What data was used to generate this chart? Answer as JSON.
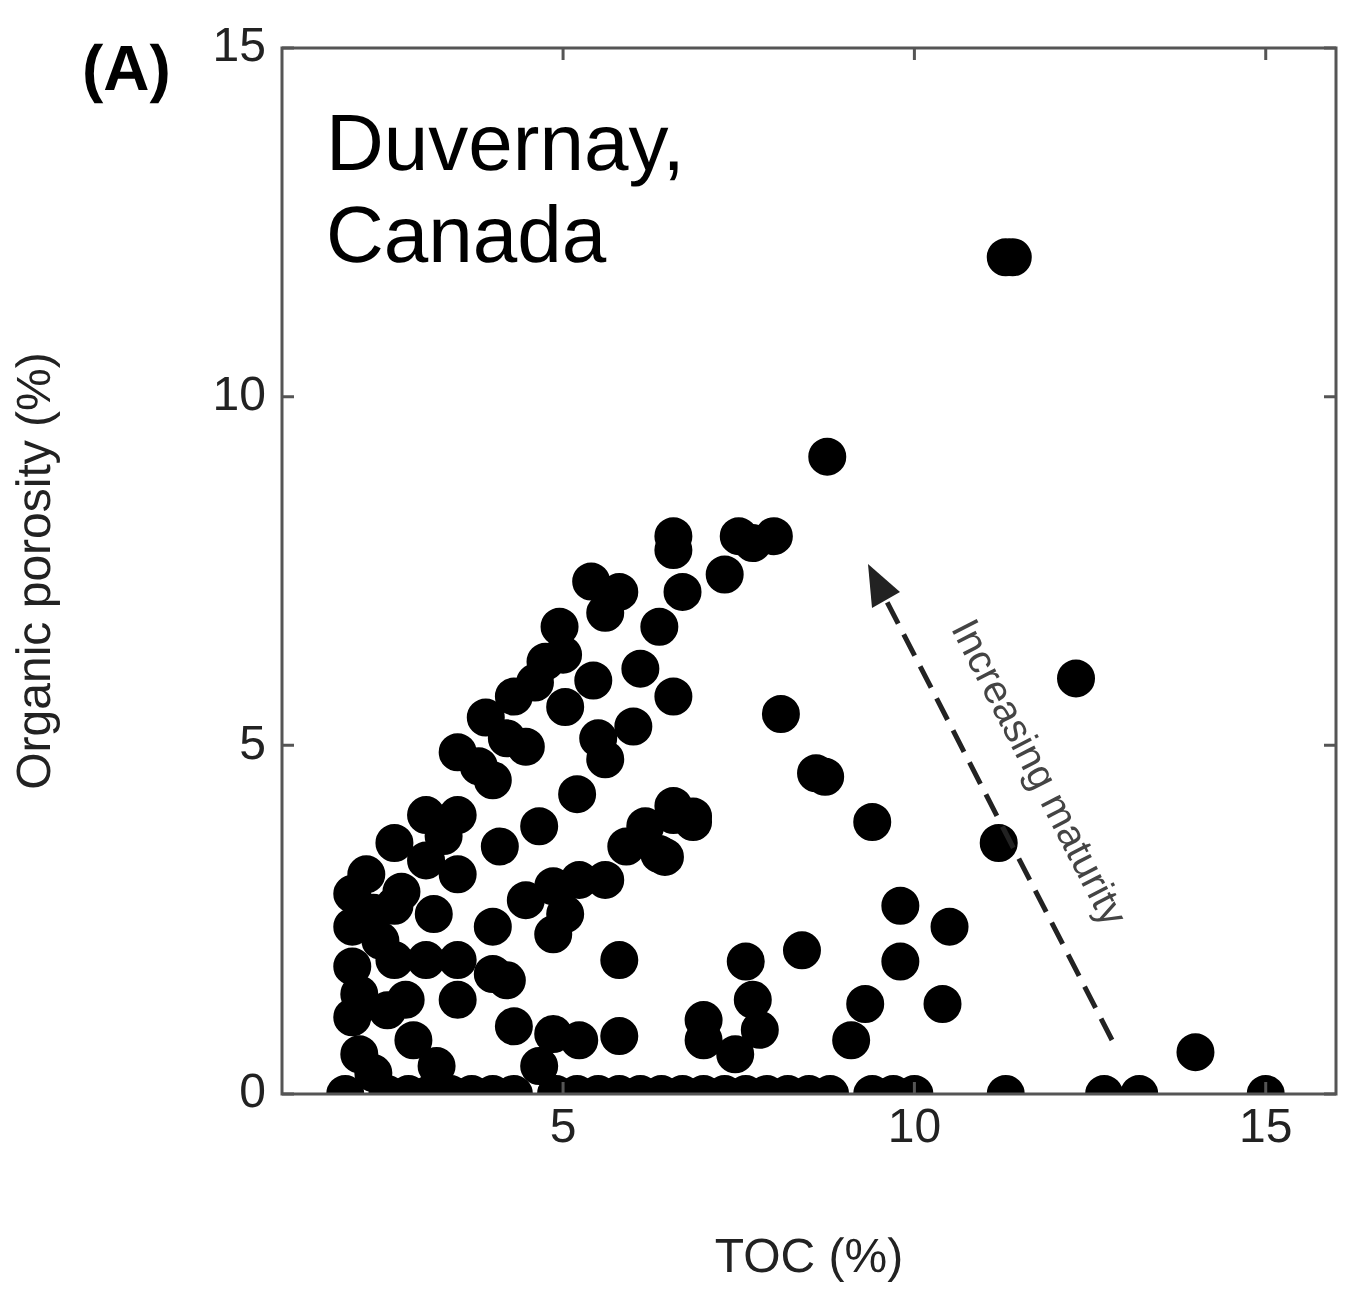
{
  "chart_data": {
    "type": "scatter",
    "xlabel": "TOC (%)",
    "ylabel": "Organic porosity (%)",
    "xlim": [
      1,
      16
    ],
    "ylim": [
      0,
      15
    ],
    "xticks": [
      5,
      10,
      15
    ],
    "yticks": [
      0,
      5,
      10,
      15
    ],
    "grid": false,
    "legend": false,
    "marker": "circle",
    "annotations": [
      "(A)",
      "Duvernay,\nCanada",
      "Increasing maturity"
    ],
    "series": [
      {
        "color": "#000000",
        "x": [
          11.3,
          11.4,
          8.76,
          12.3,
          8.1,
          8.73,
          8.6,
          9.4,
          11.2,
          9.8,
          10.5,
          8.4,
          7.6,
          9.8,
          10.4,
          9.3,
          9.1,
          7.0,
          7.0,
          7.7,
          7.8,
          7.45,
          14.0,
          6.57,
          6.57,
          6.7,
          7.5,
          8.0,
          7.7,
          7.3,
          6.57,
          6.85,
          6.45,
          5.4,
          5.8,
          4.95,
          4.75,
          4.3,
          3.9,
          3.5,
          3.05,
          2.6,
          2.2,
          2.0,
          6.37,
          6.57,
          6.0,
          5.6,
          5.2,
          4.66,
          4.1,
          3.5,
          3.16,
          4.47,
          5.03,
          5.43,
          4.0,
          3.5,
          3.05,
          2.6,
          2.4,
          2.0,
          2.6,
          2.1,
          3.05,
          2.76,
          2.1,
          2.87,
          3.2,
          4.47,
          4.86,
          5.23,
          5.6,
          5.9,
          6.17,
          6.57,
          6.85,
          6.37,
          4.86,
          4.0,
          3.5,
          4.0,
          3.5,
          4.2,
          5.8,
          5.03,
          4.3,
          4.86,
          5.23,
          5.8,
          4.66,
          2.0,
          2.0,
          2.3,
          2.5,
          2.7,
          2.3,
          3.3,
          3.8,
          4.2,
          4.6,
          5.0,
          5.6,
          6.1,
          5.5,
          1.9,
          2.5,
          2.8,
          3.1,
          3.4,
          3.7,
          4.0,
          4.3,
          4.9,
          5.2,
          5.5,
          5.8,
          6.1,
          6.4,
          6.7,
          7.0,
          7.3,
          7.6,
          7.9,
          8.2,
          8.5,
          8.8,
          9.4,
          9.7,
          10.0,
          11.3,
          12.7,
          13.2,
          15.0
        ],
        "values": [
          12.0,
          12.0,
          9.14,
          5.96,
          5.45,
          4.55,
          4.6,
          3.9,
          3.6,
          2.7,
          2.4,
          2.06,
          1.9,
          1.9,
          1.29,
          1.29,
          0.77,
          1.06,
          0.77,
          1.35,
          0.92,
          0.57,
          0.6,
          8.0,
          7.8,
          7.2,
          8.0,
          8.0,
          7.9,
          7.45,
          4.0,
          3.9,
          3.4,
          7.35,
          7.2,
          6.7,
          6.2,
          5.7,
          5.4,
          4.9,
          4.0,
          3.6,
          3.15,
          2.87,
          6.7,
          5.7,
          5.27,
          4.8,
          4.3,
          3.84,
          3.55,
          3.15,
          2.58,
          4.98,
          5.55,
          5.93,
          4.5,
          4.0,
          3.35,
          2.7,
          2.2,
          1.83,
          1.92,
          1.43,
          1.92,
          1.35,
          0.57,
          0.77,
          0.4,
          2.78,
          2.98,
          3.07,
          3.07,
          3.55,
          3.84,
          4.13,
          3.98,
          3.44,
          2.29,
          2.4,
          1.92,
          1.72,
          1.35,
          1.63,
          1.92,
          2.58,
          0.97,
          0.86,
          0.77,
          0.83,
          0.4,
          2.4,
          1.1,
          0.3,
          1.2,
          2.9,
          2.6,
          3.7,
          4.7,
          5.1,
          5.9,
          6.3,
          6.9,
          6.1,
          5.1,
          0,
          0,
          0,
          0,
          0,
          0,
          0,
          0,
          0,
          0,
          0,
          0,
          0,
          0,
          0,
          0,
          0,
          0,
          0,
          0,
          0,
          0,
          0,
          0,
          0,
          0,
          0,
          0,
          0
        ]
      }
    ]
  }
}
